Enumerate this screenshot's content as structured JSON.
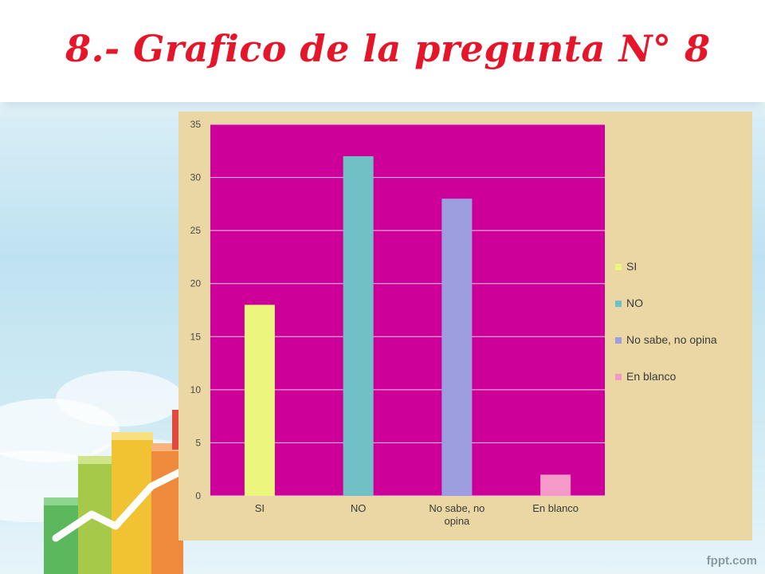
{
  "slide": {
    "title": "8.- Grafico de la pregunta N° 8",
    "brand": "fppt.com"
  },
  "colors": {
    "plot_background": "#cc0099",
    "chart_background": "#ead7a3",
    "title": "#e5162a"
  },
  "chart_data": {
    "type": "bar",
    "categories": [
      "SI",
      "NO",
      "No sabe, no opina",
      "En blanco"
    ],
    "category_labels": [
      [
        "SI"
      ],
      [
        "NO"
      ],
      [
        "No sabe, no",
        "opina"
      ],
      [
        "En blanco"
      ]
    ],
    "values": [
      18,
      32,
      28,
      2
    ],
    "colors": [
      "#eaf77c",
      "#70c0c6",
      "#9d9ee0",
      "#f59ac8"
    ],
    "legend": [
      "SI",
      "NO",
      "No sabe, no opina",
      "En blanco"
    ],
    "legend_placement": "right",
    "ylim": [
      0,
      35
    ],
    "yticks": [
      0,
      5,
      10,
      15,
      20,
      25,
      30,
      35
    ],
    "grid": true
  }
}
